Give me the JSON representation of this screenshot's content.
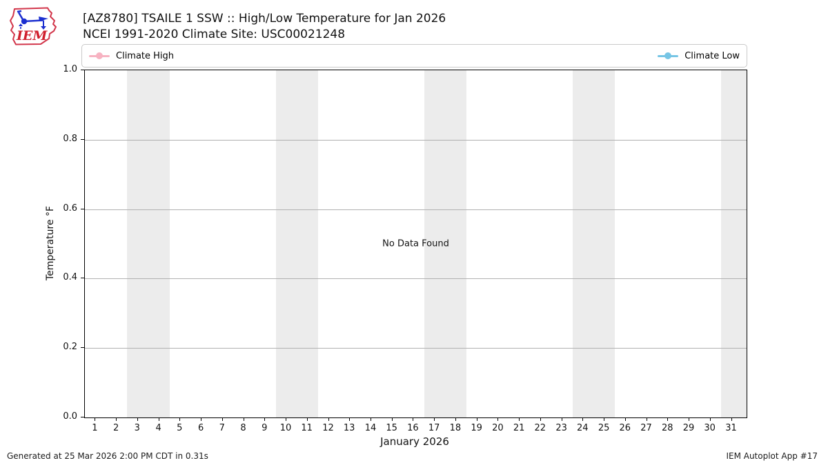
{
  "header": {
    "title_line1": "[AZ8780] TSAILE 1 SSW :: High/Low Temperature for Jan 2026",
    "title_line2": "NCEI 1991-2020 Climate Site: USC00021248",
    "logo_text": "IEM"
  },
  "legend": {
    "items": [
      {
        "label": "Climate High",
        "color": "#f7b3c2"
      },
      {
        "label": "Climate Low",
        "color": "#76c5e5"
      }
    ]
  },
  "chart_data": {
    "type": "line",
    "title": "[AZ8780] TSAILE 1 SSW :: High/Low Temperature for Jan 2026",
    "subtitle": "NCEI 1991-2020 Climate Site: USC00021248",
    "xlabel": "January 2026",
    "ylabel": "Temperature °F",
    "x": [
      1,
      2,
      3,
      4,
      5,
      6,
      7,
      8,
      9,
      10,
      11,
      12,
      13,
      14,
      15,
      16,
      17,
      18,
      19,
      20,
      21,
      22,
      23,
      24,
      25,
      26,
      27,
      28,
      29,
      30,
      31
    ],
    "xlim": [
      0.5,
      31.7
    ],
    "ylim": [
      0.0,
      1.0
    ],
    "yticks": [
      "0.0",
      "0.2",
      "0.4",
      "0.6",
      "0.8",
      "1.0"
    ],
    "grid": "horizontal",
    "legend_position": "top-row",
    "series": [
      {
        "name": "Climate High",
        "color": "#f7b3c2",
        "values": []
      },
      {
        "name": "Climate Low",
        "color": "#76c5e5",
        "values": []
      }
    ],
    "no_data_message": "No Data Found",
    "band_color": "#ececec",
    "weekend_bands": [
      [
        2.5,
        4.5
      ],
      [
        9.5,
        11.5
      ],
      [
        16.5,
        18.5
      ],
      [
        23.5,
        25.5
      ],
      [
        30.5,
        31.7
      ]
    ]
  },
  "footer": {
    "generated": "Generated at 25 Mar 2026 2:00 PM CDT in 0.31s",
    "app": "IEM Autoplot App #17"
  }
}
